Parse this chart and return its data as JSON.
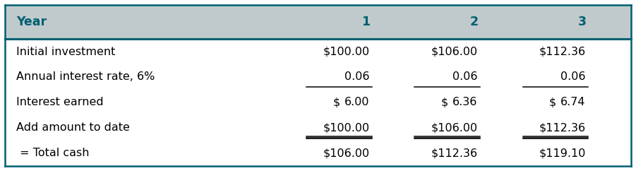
{
  "header_bg_color": "#c0cacc",
  "header_text_color": "#006070",
  "body_bg_color": "#ffffff",
  "border_color": "#006070",
  "text_color": "#000000",
  "col_header": "Year",
  "year_cols": [
    "1",
    "2",
    "3"
  ],
  "rows": [
    {
      "label": "Initial investment",
      "values": [
        "$100.00",
        "$106.00",
        "$112.36"
      ],
      "underline_below": false,
      "dollar_split": false
    },
    {
      "label": "Annual interest rate, 6%",
      "values": [
        "0.06",
        "0.06",
        "0.06"
      ],
      "underline_below": true,
      "underline_double": false,
      "dollar_split": false
    },
    {
      "label": "Interest earned",
      "values": [
        "6.00",
        "6.36",
        "6.74"
      ],
      "underline_below": false,
      "dollar_split": true
    },
    {
      "label": "Add amount to date",
      "values": [
        "$100.00",
        "$106.00",
        "$112.36"
      ],
      "underline_below": true,
      "underline_double": false,
      "dollar_split": false
    },
    {
      "label": " = Total cash",
      "values": [
        "$106.00",
        "$112.36",
        "$119.10"
      ],
      "underline_below": false,
      "dollar_split": false
    }
  ],
  "figsize": [
    9.01,
    2.42
  ],
  "dpi": 100
}
